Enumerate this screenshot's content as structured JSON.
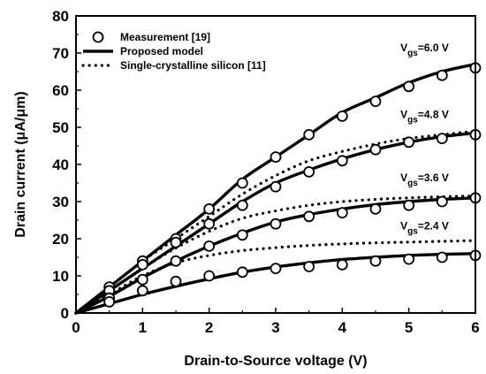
{
  "chart_data": {
    "type": "line",
    "xlabel": "Drain-to-Source voltage (V)",
    "ylabel": "Drain current (μA/μm)",
    "xlim": [
      0,
      6
    ],
    "ylim": [
      0,
      80
    ],
    "xticks": [
      0,
      1,
      2,
      3,
      4,
      5,
      6
    ],
    "yticks": [
      0,
      10,
      20,
      30,
      40,
      50,
      60,
      70,
      80
    ],
    "grid": false,
    "legend_position": "top-left",
    "legend": [
      {
        "label": "Measurement [19]",
        "style": "open-circle"
      },
      {
        "label": "Proposed model",
        "style": "solid"
      },
      {
        "label": "Single-crystalline silicon [11]",
        "style": "dotted"
      }
    ],
    "curve_labels": [
      {
        "prefix": "V",
        "sub": "gs",
        "text": "=6.0 V",
        "x": 5.6,
        "y": 70.5
      },
      {
        "prefix": "V",
        "sub": "gs",
        "text": "=4.8 V",
        "x": 5.6,
        "y": 52.5
      },
      {
        "prefix": "V",
        "sub": "gs",
        "text": "=3.6 V",
        "x": 5.6,
        "y": 35.5
      },
      {
        "prefix": "V",
        "sub": "gs",
        "text": "=2.4 V",
        "x": 5.6,
        "y": 22.5
      }
    ],
    "series": [
      {
        "vgs": 6.0,
        "measurement": {
          "x": [
            0.5,
            1.0,
            1.5,
            2.0,
            2.5,
            3.0,
            3.5,
            4.0,
            4.5,
            5.0,
            5.5,
            6.0
          ],
          "y": [
            7,
            14,
            20,
            28,
            35,
            42,
            48,
            53,
            57,
            61,
            64,
            66
          ]
        },
        "model": {
          "x": [
            0,
            0.5,
            1.0,
            1.5,
            2.0,
            2.5,
            3.0,
            3.5,
            4.0,
            4.5,
            5.0,
            5.5,
            6.0
          ],
          "y": [
            0,
            7,
            14,
            21,
            28,
            36,
            42,
            48,
            54,
            58,
            62,
            65,
            67
          ]
        }
      },
      {
        "vgs": 4.8,
        "measurement": {
          "x": [
            0.5,
            1.0,
            1.5,
            2.0,
            2.5,
            3.0,
            3.5,
            4.0,
            4.5,
            5.0,
            5.5,
            6.0
          ],
          "y": [
            6,
            13,
            19,
            24,
            29,
            34,
            38,
            41,
            44,
            46,
            47,
            48
          ]
        },
        "model": {
          "x": [
            0,
            0.5,
            1.0,
            1.5,
            2.0,
            2.5,
            3.0,
            3.5,
            4.0,
            4.5,
            5.0,
            5.5,
            6.0
          ],
          "y": [
            0,
            6,
            12,
            18,
            24,
            30,
            35,
            38.5,
            41.5,
            44,
            46,
            47.5,
            48.5
          ]
        },
        "reference": {
          "x": [
            0,
            0.5,
            1.0,
            1.5,
            2.0,
            2.5,
            3.0,
            3.5,
            4.0,
            4.5,
            5.0,
            5.5,
            6.0
          ],
          "y": [
            0,
            7,
            14,
            20,
            26,
            32,
            37,
            41,
            43.5,
            45.5,
            47,
            48,
            49
          ]
        }
      },
      {
        "vgs": 3.6,
        "measurement": {
          "x": [
            0.5,
            1.0,
            1.5,
            2.0,
            2.5,
            3.0,
            3.5,
            4.0,
            4.5,
            5.0,
            5.5,
            6.0
          ],
          "y": [
            4,
            9,
            14,
            18,
            21,
            24,
            26,
            27,
            28,
            29,
            30,
            31
          ]
        },
        "model": {
          "x": [
            0,
            0.5,
            1.0,
            1.5,
            2.0,
            2.5,
            3.0,
            3.5,
            4.0,
            4.5,
            5.0,
            5.5,
            6.0
          ],
          "y": [
            0,
            4.5,
            9.5,
            14,
            18,
            21.5,
            24.5,
            26.5,
            28,
            29.2,
            30,
            30.6,
            31
          ]
        },
        "reference": {
          "x": [
            0,
            0.5,
            1.0,
            1.5,
            2.0,
            2.5,
            3.0,
            3.5,
            4.0,
            4.5,
            5.0,
            5.5,
            6.0
          ],
          "y": [
            0,
            6,
            12,
            17.5,
            22,
            25.5,
            27.5,
            29,
            30,
            30.6,
            31,
            31.3,
            31.5
          ]
        }
      },
      {
        "vgs": 2.4,
        "measurement": {
          "x": [
            0.5,
            1.0,
            1.5,
            2.0,
            2.5,
            3.0,
            3.5,
            4.0,
            4.5,
            5.0,
            5.5,
            6.0
          ],
          "y": [
            3,
            6,
            8.5,
            10,
            11,
            12,
            12.5,
            13,
            14,
            14.5,
            15,
            15.5
          ]
        },
        "model": {
          "x": [
            0,
            0.5,
            1.0,
            1.5,
            2.0,
            2.5,
            3.0,
            3.5,
            4.0,
            4.5,
            5.0,
            5.5,
            6.0
          ],
          "y": [
            0,
            2.5,
            5,
            7.2,
            9.2,
            11,
            12.4,
            13.5,
            14.4,
            15,
            15.5,
            15.8,
            16
          ]
        },
        "reference": {
          "x": [
            0,
            0.5,
            1.0,
            1.5,
            2.0,
            2.5,
            3.0,
            3.5,
            4.0,
            4.5,
            5.0,
            5.5,
            6.0
          ],
          "y": [
            0,
            5,
            10,
            13.5,
            15.5,
            16.8,
            17.6,
            18.2,
            18.6,
            18.9,
            19.1,
            19.3,
            19.5
          ]
        }
      }
    ]
  }
}
